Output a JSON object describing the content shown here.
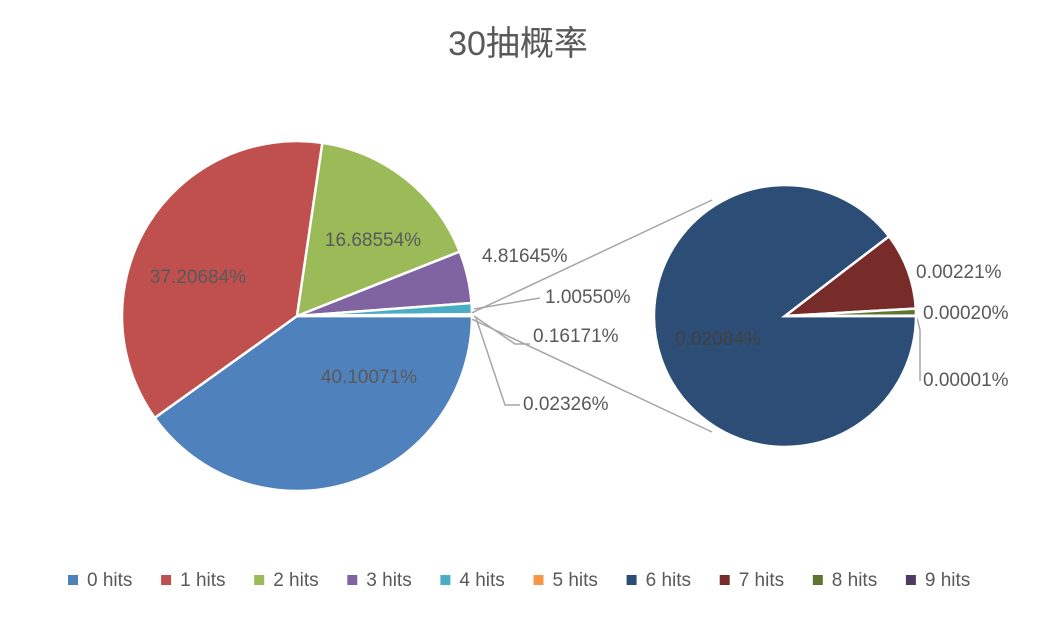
{
  "chart_data": {
    "type": "pie-of-pie",
    "title": "30抽概率",
    "categories": [
      "0 hits",
      "1 hits",
      "2 hits",
      "3 hits",
      "4 hits",
      "5 hits",
      "6 hits",
      "7 hits",
      "8 hits",
      "9 hits"
    ],
    "values": [
      40.10071,
      37.20684,
      16.68554,
      4.81645,
      1.0055,
      0.16171,
      0.02084,
      0.00221,
      0.0002,
      1e-05
    ],
    "value_labels": [
      "40.10071%",
      "37.20684%",
      "16.68554%",
      "4.81645%",
      "1.00550%",
      "0.16171%",
      "0.02084%",
      "0.00221%",
      "0.00020%",
      "0.00001%"
    ],
    "colors": [
      "#4f81bd",
      "#c0504d",
      "#9bbb59",
      "#8064a2",
      "#4bacc6",
      "#f79646",
      "#2c4d75",
      "#772c2a",
      "#5f7530",
      "#4d3b62"
    ],
    "second_plot_count": 4,
    "other": {
      "value": 0.02326,
      "label": "0.02326%",
      "color": "#2c4d75"
    }
  }
}
